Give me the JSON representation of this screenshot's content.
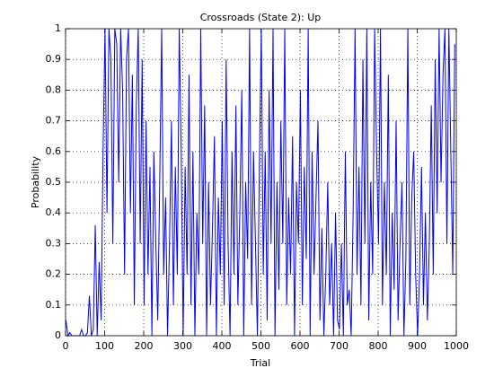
{
  "chart_data": {
    "type": "line",
    "title": "Crossroads (State 2): Up",
    "x_label": "Trial",
    "y_label": "Probability",
    "x": [
      1,
      6,
      11,
      16,
      21,
      26,
      31,
      36,
      41,
      46,
      51,
      56,
      61,
      66,
      71,
      76,
      81,
      86,
      91,
      96,
      101,
      106,
      111,
      116,
      121,
      126,
      131,
      136,
      141,
      146,
      151,
      156,
      161,
      166,
      171,
      176,
      181,
      186,
      191,
      196,
      201,
      206,
      211,
      216,
      221,
      226,
      231,
      236,
      241,
      246,
      251,
      256,
      261,
      266,
      271,
      276,
      281,
      286,
      291,
      296,
      301,
      306,
      311,
      316,
      321,
      326,
      331,
      336,
      341,
      346,
      351,
      356,
      361,
      366,
      371,
      376,
      381,
      386,
      391,
      396,
      401,
      406,
      411,
      416,
      421,
      426,
      431,
      436,
      441,
      446,
      451,
      456,
      461,
      466,
      471,
      476,
      481,
      486,
      491,
      496,
      501,
      506,
      511,
      516,
      521,
      526,
      531,
      536,
      541,
      546,
      551,
      556,
      561,
      566,
      571,
      576,
      581,
      586,
      591,
      596,
      601,
      606,
      611,
      616,
      621,
      626,
      631,
      636,
      641,
      646,
      651,
      656,
      661,
      666,
      671,
      676,
      681,
      686,
      691,
      696,
      701,
      706,
      711,
      716,
      721,
      726,
      731,
      736,
      741,
      746,
      751,
      756,
      761,
      766,
      771,
      776,
      781,
      786,
      791,
      796,
      801,
      806,
      811,
      816,
      821,
      826,
      831,
      836,
      841,
      846,
      851,
      856,
      861,
      866,
      871,
      876,
      881,
      886,
      891,
      896,
      901,
      906,
      911,
      916,
      921,
      926,
      931,
      936,
      941,
      946,
      951,
      956,
      961,
      966,
      971,
      976,
      981,
      986,
      991,
      996
    ],
    "series": [
      {
        "name": "Up",
        "color": "#0000ff",
        "values": [
          0.05,
          0,
          0.01,
          0,
          0,
          0,
          0,
          0,
          0.02,
          0,
          0,
          0.01,
          0.13,
          0,
          0.02,
          0.36,
          0,
          0.24,
          0.05,
          0.6,
          1,
          0.4,
          1,
          0.9,
          0.3,
          1,
          0.95,
          0.5,
          1,
          0.8,
          0.2,
          0.9,
          1,
          0.4,
          0.85,
          0.1,
          0.75,
          1,
          0.3,
          0.9,
          0.1,
          0.7,
          0.2,
          0.55,
          0,
          0.6,
          0.3,
          0.05,
          0.5,
          1,
          0.2,
          0.45,
          0,
          0.3,
          0.7,
          0.1,
          0.55,
          0.2,
          1,
          0.6,
          0,
          0.55,
          0.2,
          0.85,
          0.1,
          0.6,
          0,
          0.4,
          0.2,
          1,
          0.3,
          0.75,
          0,
          0.5,
          0.1,
          0.35,
          0.65,
          0,
          0.45,
          0.2,
          0.7,
          0.1,
          0.9,
          0.3,
          0,
          0.6,
          0.2,
          0.75,
          0.1,
          0.4,
          0.8,
          0,
          0.5,
          0.25,
          1,
          0.1,
          0.6,
          0.3,
          0,
          0.55,
          1,
          0.2,
          0.6,
          0.05,
          0.8,
          0.3,
          1,
          0,
          0.5,
          0.15,
          0.7,
          0.3,
          1,
          0.1,
          0.45,
          0.2,
          0.65,
          0,
          0.5,
          0.3,
          0.8,
          0.1,
          0.55,
          0.25,
          1,
          0,
          0.6,
          0.2,
          0.45,
          0.7,
          0.05,
          0.35,
          0,
          0.2,
          0.5,
          0.1,
          0.3,
          0,
          0.4,
          0.05,
          0.02,
          0.3,
          0,
          0.6,
          0.1,
          0.15,
          0,
          0.4,
          1,
          0.2,
          0.55,
          0.1,
          0.9,
          0.3,
          1,
          0.05,
          0.5,
          0.2,
          1,
          0.6,
          0.3,
          1,
          0.1,
          0.5,
          0.2,
          0.85,
          0,
          0.4,
          0.15,
          0.7,
          0.05,
          0.3,
          0.5,
          0,
          0.25,
          1,
          0.1,
          0.45,
          0.6,
          0.2,
          0,
          0.2,
          0.55,
          0.1,
          0.4,
          0.05,
          0.3,
          0.75,
          0.2,
          0.9,
          0.4,
          1,
          0.5,
          0.85,
          1,
          0.3,
          1,
          0.6,
          0.2,
          0.95
        ]
      }
    ],
    "xlim": [
      0,
      1000
    ],
    "xticks": [
      0,
      100,
      200,
      300,
      400,
      500,
      600,
      700,
      800,
      900,
      1000
    ],
    "ylim": [
      0,
      1
    ],
    "yticks": [
      0,
      0.1,
      0.2,
      0.3,
      0.4,
      0.5,
      0.6,
      0.7,
      0.8,
      0.9,
      1
    ],
    "grid": true
  }
}
